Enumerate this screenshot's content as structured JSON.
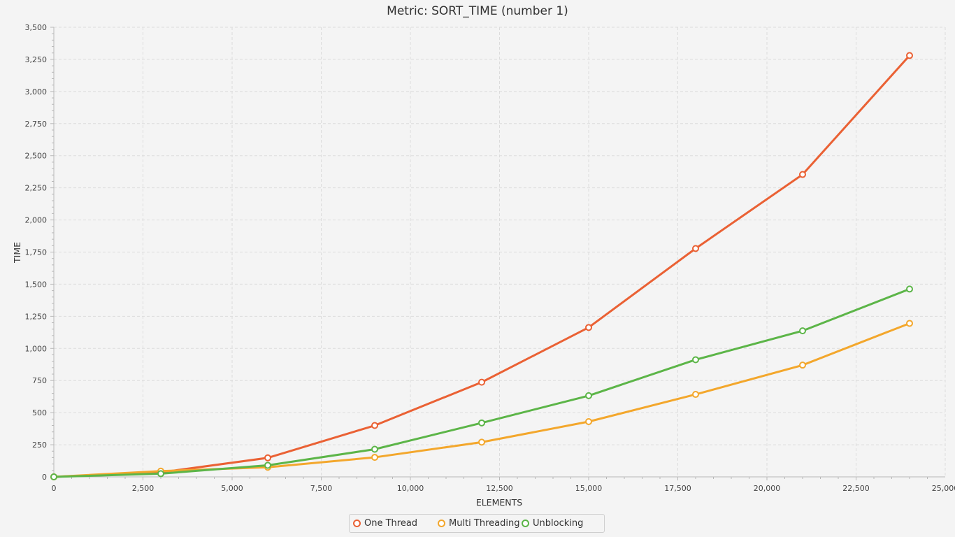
{
  "chart_data": {
    "type": "line",
    "title": "Metric: SORT_TIME (number 1)",
    "xlabel": "ELEMENTS",
    "ylabel": "TIME",
    "xlim": [
      0,
      25000
    ],
    "ylim": [
      0,
      3500
    ],
    "x_ticks": [
      "0",
      "2,500",
      "5,000",
      "7,500",
      "10,000",
      "12,500",
      "15,000",
      "17,500",
      "20,000",
      "22,500",
      "25,000"
    ],
    "y_ticks": [
      "0",
      "250",
      "500",
      "750",
      "1,000",
      "1,250",
      "1,500",
      "1,750",
      "2,000",
      "2,250",
      "2,500",
      "2,750",
      "3,000",
      "3,250",
      "3,500"
    ],
    "grid": true,
    "legend_position": "bottom",
    "x": [
      0,
      3000,
      6000,
      9000,
      12000,
      15000,
      18000,
      21000,
      24000
    ],
    "series": [
      {
        "name": "One Thread",
        "color": "#ea6134",
        "values": [
          0,
          35,
          148,
          400,
          737,
          1163,
          1778,
          2354,
          3280
        ]
      },
      {
        "name": "Multi Threading",
        "color": "#f3a72c",
        "values": [
          0,
          45,
          75,
          152,
          270,
          430,
          642,
          870,
          1195
        ]
      },
      {
        "name": "Unblocking",
        "color": "#5cb548",
        "values": [
          0,
          25,
          90,
          215,
          420,
          632,
          912,
          1137,
          1462
        ]
      }
    ]
  }
}
